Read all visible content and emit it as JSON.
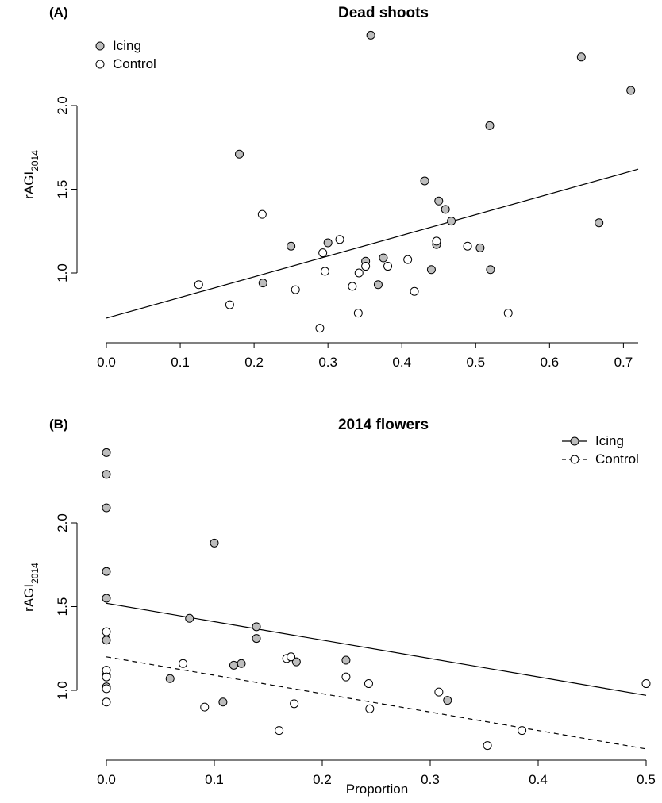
{
  "chart_data": [
    {
      "type": "scatter",
      "panel_label": "(A)",
      "title": "Dead shoots",
      "xlabel": "",
      "ylabel": "rAGI",
      "ylabel_sub": "2014",
      "xlim": [
        0.0,
        0.72
      ],
      "ylim": [
        0.62,
        2.45
      ],
      "x_ticks": [
        0.0,
        0.1,
        0.2,
        0.3,
        0.4,
        0.5,
        0.6,
        0.7
      ],
      "x_tick_labels": [
        "0.0",
        "0.1",
        "0.2",
        "0.3",
        "0.4",
        "0.5",
        "0.6",
        "0.7"
      ],
      "y_ticks": [
        1.0,
        1.5,
        2.0
      ],
      "y_tick_labels": [
        "1.0",
        "1.5",
        "2.0"
      ],
      "legend": {
        "position": "top-left",
        "entries": [
          {
            "label": "Icing",
            "marker": "filled",
            "color": "#bdbdbd"
          },
          {
            "label": "Control",
            "marker": "open",
            "color": "#ffffff"
          }
        ]
      },
      "series": [
        {
          "name": "Icing",
          "marker": "filled",
          "color": "#bdbdbd",
          "points": [
            [
              0.358,
              2.42
            ],
            [
              0.643,
              2.29
            ],
            [
              0.71,
              2.09
            ],
            [
              0.519,
              1.88
            ],
            [
              0.18,
              1.71
            ],
            [
              0.431,
              1.55
            ],
            [
              0.45,
              1.43
            ],
            [
              0.459,
              1.38
            ],
            [
              0.467,
              1.31
            ],
            [
              0.667,
              1.3
            ],
            [
              0.3,
              1.18
            ],
            [
              0.25,
              1.16
            ],
            [
              0.447,
              1.17
            ],
            [
              0.506,
              1.15
            ],
            [
              0.375,
              1.09
            ],
            [
              0.351,
              1.07
            ],
            [
              0.52,
              1.02
            ],
            [
              0.44,
              1.02
            ],
            [
              0.212,
              0.94
            ],
            [
              0.368,
              0.93
            ]
          ]
        },
        {
          "name": "Control",
          "marker": "open",
          "color": "#ffffff",
          "points": [
            [
              0.211,
              1.35
            ],
            [
              0.316,
              1.2
            ],
            [
              0.447,
              1.19
            ],
            [
              0.489,
              1.16
            ],
            [
              0.293,
              1.12
            ],
            [
              0.408,
              1.08
            ],
            [
              0.381,
              1.04
            ],
            [
              0.351,
              1.04
            ],
            [
              0.296,
              1.01
            ],
            [
              0.342,
              1.0
            ],
            [
              0.125,
              0.93
            ],
            [
              0.333,
              0.92
            ],
            [
              0.256,
              0.9
            ],
            [
              0.417,
              0.89
            ],
            [
              0.167,
              0.81
            ],
            [
              0.341,
              0.76
            ],
            [
              0.544,
              0.76
            ],
            [
              0.289,
              0.67
            ]
          ]
        }
      ],
      "regression_lines": [
        {
          "series": "Icing",
          "style": "solid",
          "x": [
            0.0,
            0.72
          ],
          "y": [
            0.73,
            1.62
          ]
        }
      ]
    },
    {
      "type": "scatter",
      "panel_label": "(B)",
      "title": "2014 flowers",
      "xlabel": "Proportion",
      "ylabel": "rAGI",
      "ylabel_sub": "2014",
      "xlim": [
        0.0,
        0.5
      ],
      "ylim": [
        0.62,
        2.45
      ],
      "x_ticks": [
        0.0,
        0.1,
        0.2,
        0.3,
        0.4,
        0.5
      ],
      "x_tick_labels": [
        "0.0",
        "0.1",
        "0.2",
        "0.3",
        "0.4",
        "0.5"
      ],
      "y_ticks": [
        1.0,
        1.5,
        2.0
      ],
      "y_tick_labels": [
        "1.0",
        "1.5",
        "2.0"
      ],
      "legend": {
        "position": "top-right",
        "entries": [
          {
            "label": "Icing",
            "line": "solid",
            "marker": "filled",
            "color": "#bdbdbd"
          },
          {
            "label": "Control",
            "line": "dashed",
            "marker": "open",
            "color": "#ffffff"
          }
        ]
      },
      "series": [
        {
          "name": "Icing",
          "marker": "filled",
          "color": "#bdbdbd",
          "points": [
            [
              0,
              2.42
            ],
            [
              0,
              2.29
            ],
            [
              0,
              2.09
            ],
            [
              0,
              1.71
            ],
            [
              0,
              1.55
            ],
            [
              0,
              1.3
            ],
            [
              0,
              1.09
            ],
            [
              0,
              1.02
            ],
            [
              0.1,
              1.88
            ],
            [
              0.077,
              1.43
            ],
            [
              0.139,
              1.38
            ],
            [
              0.139,
              1.31
            ],
            [
              0.125,
              1.16
            ],
            [
              0.118,
              1.15
            ],
            [
              0.176,
              1.17
            ],
            [
              0.222,
              1.18
            ],
            [
              0.059,
              1.07
            ],
            [
              0.108,
              0.93
            ],
            [
              0.316,
              0.94
            ]
          ]
        },
        {
          "name": "Control",
          "marker": "open",
          "color": "#ffffff",
          "points": [
            [
              0,
              1.35
            ],
            [
              0,
              1.12
            ],
            [
              0,
              1.08
            ],
            [
              0,
              1.02
            ],
            [
              0,
              1.01
            ],
            [
              0,
              0.93
            ],
            [
              0.071,
              1.16
            ],
            [
              0.167,
              1.19
            ],
            [
              0.171,
              1.2
            ],
            [
              0.222,
              1.08
            ],
            [
              0.243,
              1.04
            ],
            [
              0.5,
              1.04
            ],
            [
              0.308,
              0.99
            ],
            [
              0.174,
              0.92
            ],
            [
              0.091,
              0.9
            ],
            [
              0.244,
              0.89
            ],
            [
              0.16,
              0.76
            ],
            [
              0.385,
              0.76
            ],
            [
              0.353,
              0.67
            ]
          ]
        }
      ],
      "regression_lines": [
        {
          "series": "Icing",
          "style": "solid",
          "x": [
            0.0,
            0.5
          ],
          "y": [
            1.52,
            0.97
          ]
        },
        {
          "series": "Control",
          "style": "dashed",
          "x": [
            0.0,
            0.5
          ],
          "y": [
            1.2,
            0.65
          ]
        }
      ]
    }
  ]
}
